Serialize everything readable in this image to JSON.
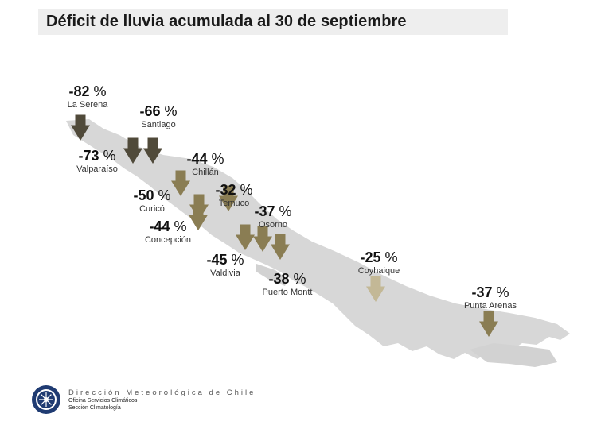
{
  "title": "Déficit de lluvia acumulada al 30 de septiembre",
  "chart_data": {
    "type": "map",
    "title": "Déficit de lluvia acumulada al 30 de septiembre",
    "unit": "%",
    "series": [
      {
        "city": "La Serena",
        "value": -82,
        "color": "#504a3a"
      },
      {
        "city": "Santiago",
        "value": -66,
        "color": "#504a3a"
      },
      {
        "city": "Valparaíso",
        "value": -73,
        "color": "#504a3a"
      },
      {
        "city": "Chillán",
        "value": -44,
        "color": "#8a7d53"
      },
      {
        "city": "Curicó",
        "value": -50,
        "color": "#8a7d53"
      },
      {
        "city": "Temuco",
        "value": -32,
        "color": "#8a7d53"
      },
      {
        "city": "Osorno",
        "value": -37,
        "color": "#8a7d53"
      },
      {
        "city": "Concepción",
        "value": -44,
        "color": "#8a7d53"
      },
      {
        "city": "Valdivia",
        "value": -45,
        "color": "#8a7d53"
      },
      {
        "city": "Puerto Montt",
        "value": -38,
        "color": "#8a7d53"
      },
      {
        "city": "Coyhaique",
        "value": -25,
        "color": "#c3b896"
      },
      {
        "city": "Punta Arenas",
        "value": -37,
        "color": "#8a7d53"
      }
    ]
  },
  "footer": {
    "org": "Dirección Meteorológica de Chile",
    "office": "Oficina Servicios Climáticos",
    "section": "Sección Climatología"
  }
}
